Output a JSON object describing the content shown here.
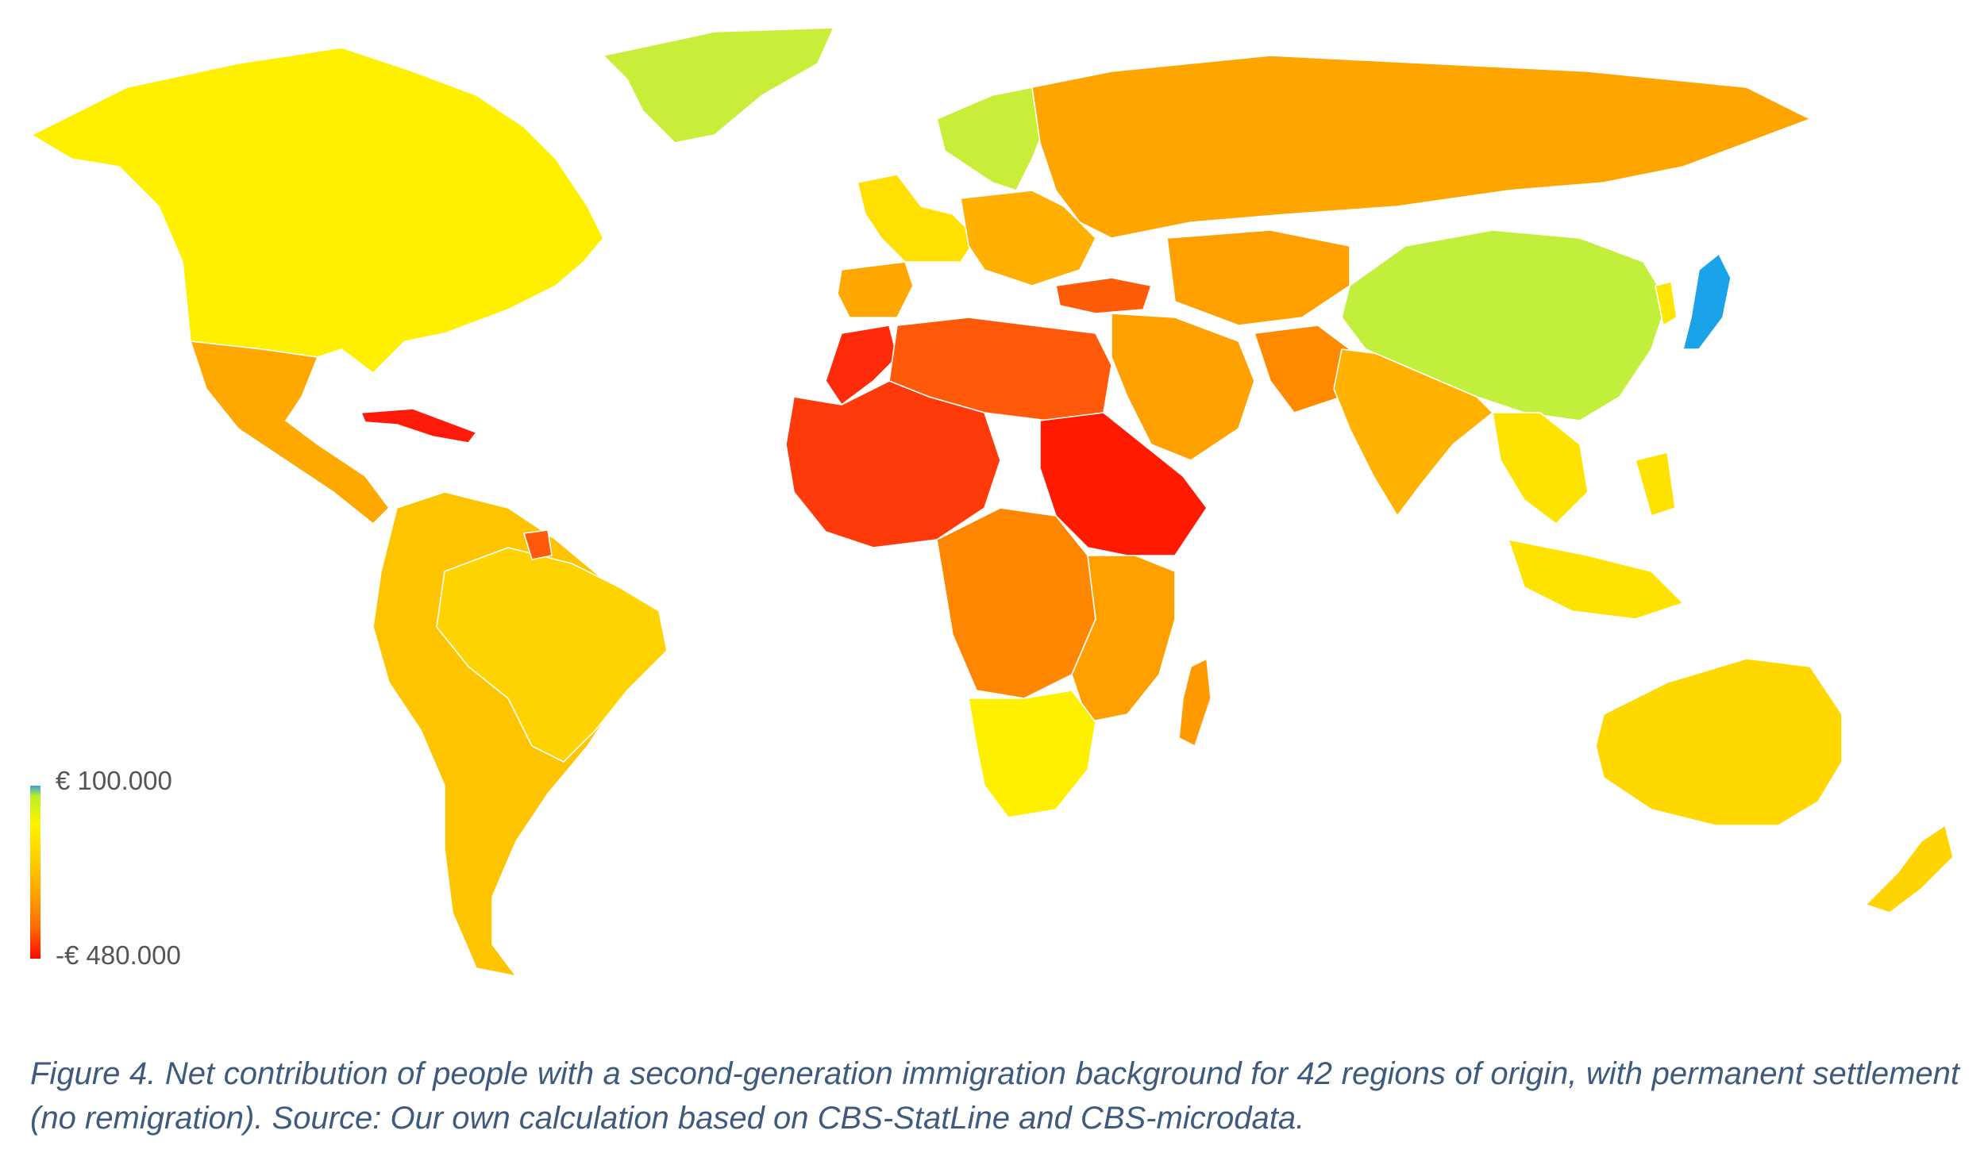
{
  "legend": {
    "max_label": "€ 100.000",
    "min_label": "-€ 480.000",
    "max_value": 100000,
    "min_value": -480000,
    "colors": [
      "#3aa0e0",
      "#b9f02a",
      "#fff200",
      "#ffd400",
      "#ffa500",
      "#ff6a00",
      "#ff0a00"
    ]
  },
  "caption": "Figure 4. Net contribution of people with a second-generation immigration background for 42 regions of origin, with permanent settlement (no remigration). Source: Our own calculation based on CBS-StatLine and CBS-microdata.",
  "regions": [
    {
      "name": "Japan",
      "color": "#1aa3e8"
    },
    {
      "name": "China",
      "color": "#c2ef3c"
    },
    {
      "name": "Scandinavia",
      "color": "#c9ee3a"
    },
    {
      "name": "Greenland",
      "color": "#c9ee3a"
    },
    {
      "name": "North America",
      "color": "#fff000"
    },
    {
      "name": "Western Europe",
      "color": "#ffe000"
    },
    {
      "name": "South Korea",
      "color": "#ffe600"
    },
    {
      "name": "South Africa",
      "color": "#fff000"
    },
    {
      "name": "Australia",
      "color": "#ffd800"
    },
    {
      "name": "New Zealand",
      "color": "#ffd400"
    },
    {
      "name": "Southeast Asia",
      "color": "#ffe300"
    },
    {
      "name": "Brazil",
      "color": "#ffd300"
    },
    {
      "name": "South America",
      "color": "#ffc400"
    },
    {
      "name": "India",
      "color": "#ffb200"
    },
    {
      "name": "Russia",
      "color": "#ffa500"
    },
    {
      "name": "Mexico",
      "color": "#ffa900"
    },
    {
      "name": "Central Asia",
      "color": "#ff9f00"
    },
    {
      "name": "Middle East",
      "color": "#ffa100"
    },
    {
      "name": "Eastern Europe",
      "color": "#ffb000"
    },
    {
      "name": "Iberia",
      "color": "#ffa700"
    },
    {
      "name": "Madagascar",
      "color": "#ff9a00"
    },
    {
      "name": "Afghanistan and Pakistan",
      "color": "#ff8a00"
    },
    {
      "name": "Central Africa",
      "color": "#ff8600"
    },
    {
      "name": "East Africa",
      "color": "#ffa000"
    },
    {
      "name": "Turkey",
      "color": "#ff5c0a"
    },
    {
      "name": "North Africa",
      "color": "#ff5a0a"
    },
    {
      "name": "West Africa",
      "color": "#ff3a0a"
    },
    {
      "name": "Suriname",
      "color": "#ff5a0a"
    },
    {
      "name": "Morocco",
      "color": "#ff2a0a"
    },
    {
      "name": "Horn of Africa",
      "color": "#ff1a00"
    },
    {
      "name": "Caribbean",
      "color": "#ff1a0a"
    }
  ]
}
